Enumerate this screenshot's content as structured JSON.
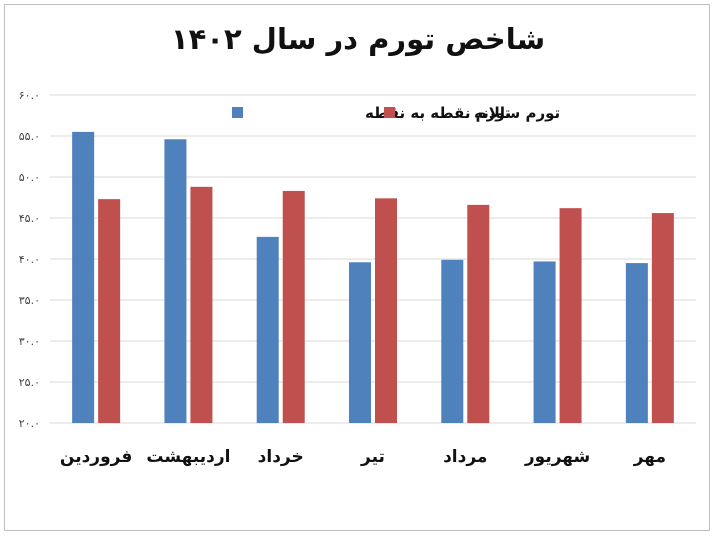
{
  "chart_data": {
    "type": "bar",
    "title": "شاخص تورم در سال ۱۴۰۲",
    "categories": [
      "فروردین",
      "اردیبهشت",
      "خرداد",
      "تیر",
      "مرداد",
      "شهریور",
      "مهر"
    ],
    "series": [
      {
        "name": "تورم نقطه به نقطه",
        "color": "#4f81bd",
        "values": [
          55.5,
          54.6,
          42.7,
          39.6,
          39.9,
          39.7,
          39.5
        ]
      },
      {
        "name": "تورم سالانه",
        "color": "#c0504d",
        "values": [
          47.3,
          48.8,
          48.3,
          47.4,
          46.6,
          46.2,
          45.6
        ]
      }
    ],
    "ylim": [
      20,
      60
    ],
    "yticks": [
      20,
      25,
      30,
      35,
      40,
      45,
      50,
      55,
      60
    ],
    "ytick_labels": [
      "۲۰.۰",
      "۲۵.۰",
      "۳۰.۰",
      "۳۵.۰",
      "۴۰.۰",
      "۴۵.۰",
      "۵۰.۰",
      "۵۵.۰",
      "۶۰.۰"
    ],
    "xlabel": "",
    "ylabel": "",
    "grid": true,
    "legend": "top"
  }
}
